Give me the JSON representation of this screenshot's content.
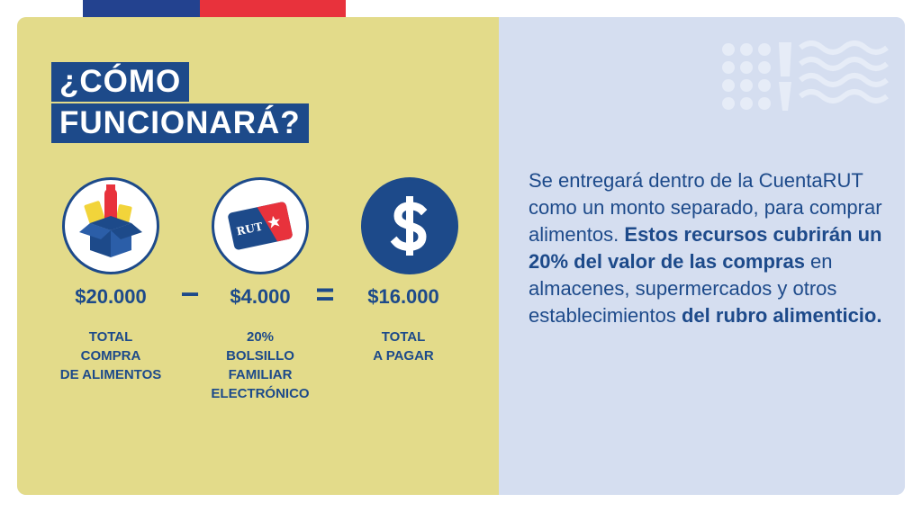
{
  "title": {
    "line1": "¿CÓMO",
    "line2": "FUNCIONARÁ?"
  },
  "equation": {
    "items": [
      {
        "amount": "$20.000",
        "label_lines": [
          "TOTAL",
          "COMPRA",
          "DE ALIMENTOS"
        ],
        "icon": "grocery-box-icon"
      },
      {
        "amount": "$4.000",
        "label_lines": [
          "20%",
          "BOLSILLO",
          "FAMILIAR",
          "ELECTRÓNICO"
        ],
        "icon": "rut-card-icon",
        "card_text": "RUT"
      },
      {
        "amount": "$16.000",
        "label_lines": [
          "TOTAL",
          "A PAGAR"
        ],
        "icon": "dollar-icon"
      }
    ],
    "minus": "−",
    "equals": "="
  },
  "description": {
    "segments": [
      {
        "text": "Se entregará dentro de la CuentaRUT como un monto separado, para comprar alimentos. ",
        "bold": false
      },
      {
        "text": "Estos recursos cubrirán un 20% del valor de las compras",
        "bold": true
      },
      {
        "text": " en almacenes, supermercados y otros establecimientos ",
        "bold": false
      },
      {
        "text": "del rubro alimenticio.",
        "bold": true
      }
    ]
  },
  "colors": {
    "navy": "#1d4a8a",
    "flag_blue": "#23428f",
    "flag_red": "#e8323c",
    "left_panel": "#e3db8a",
    "right_panel": "#d5def0"
  }
}
